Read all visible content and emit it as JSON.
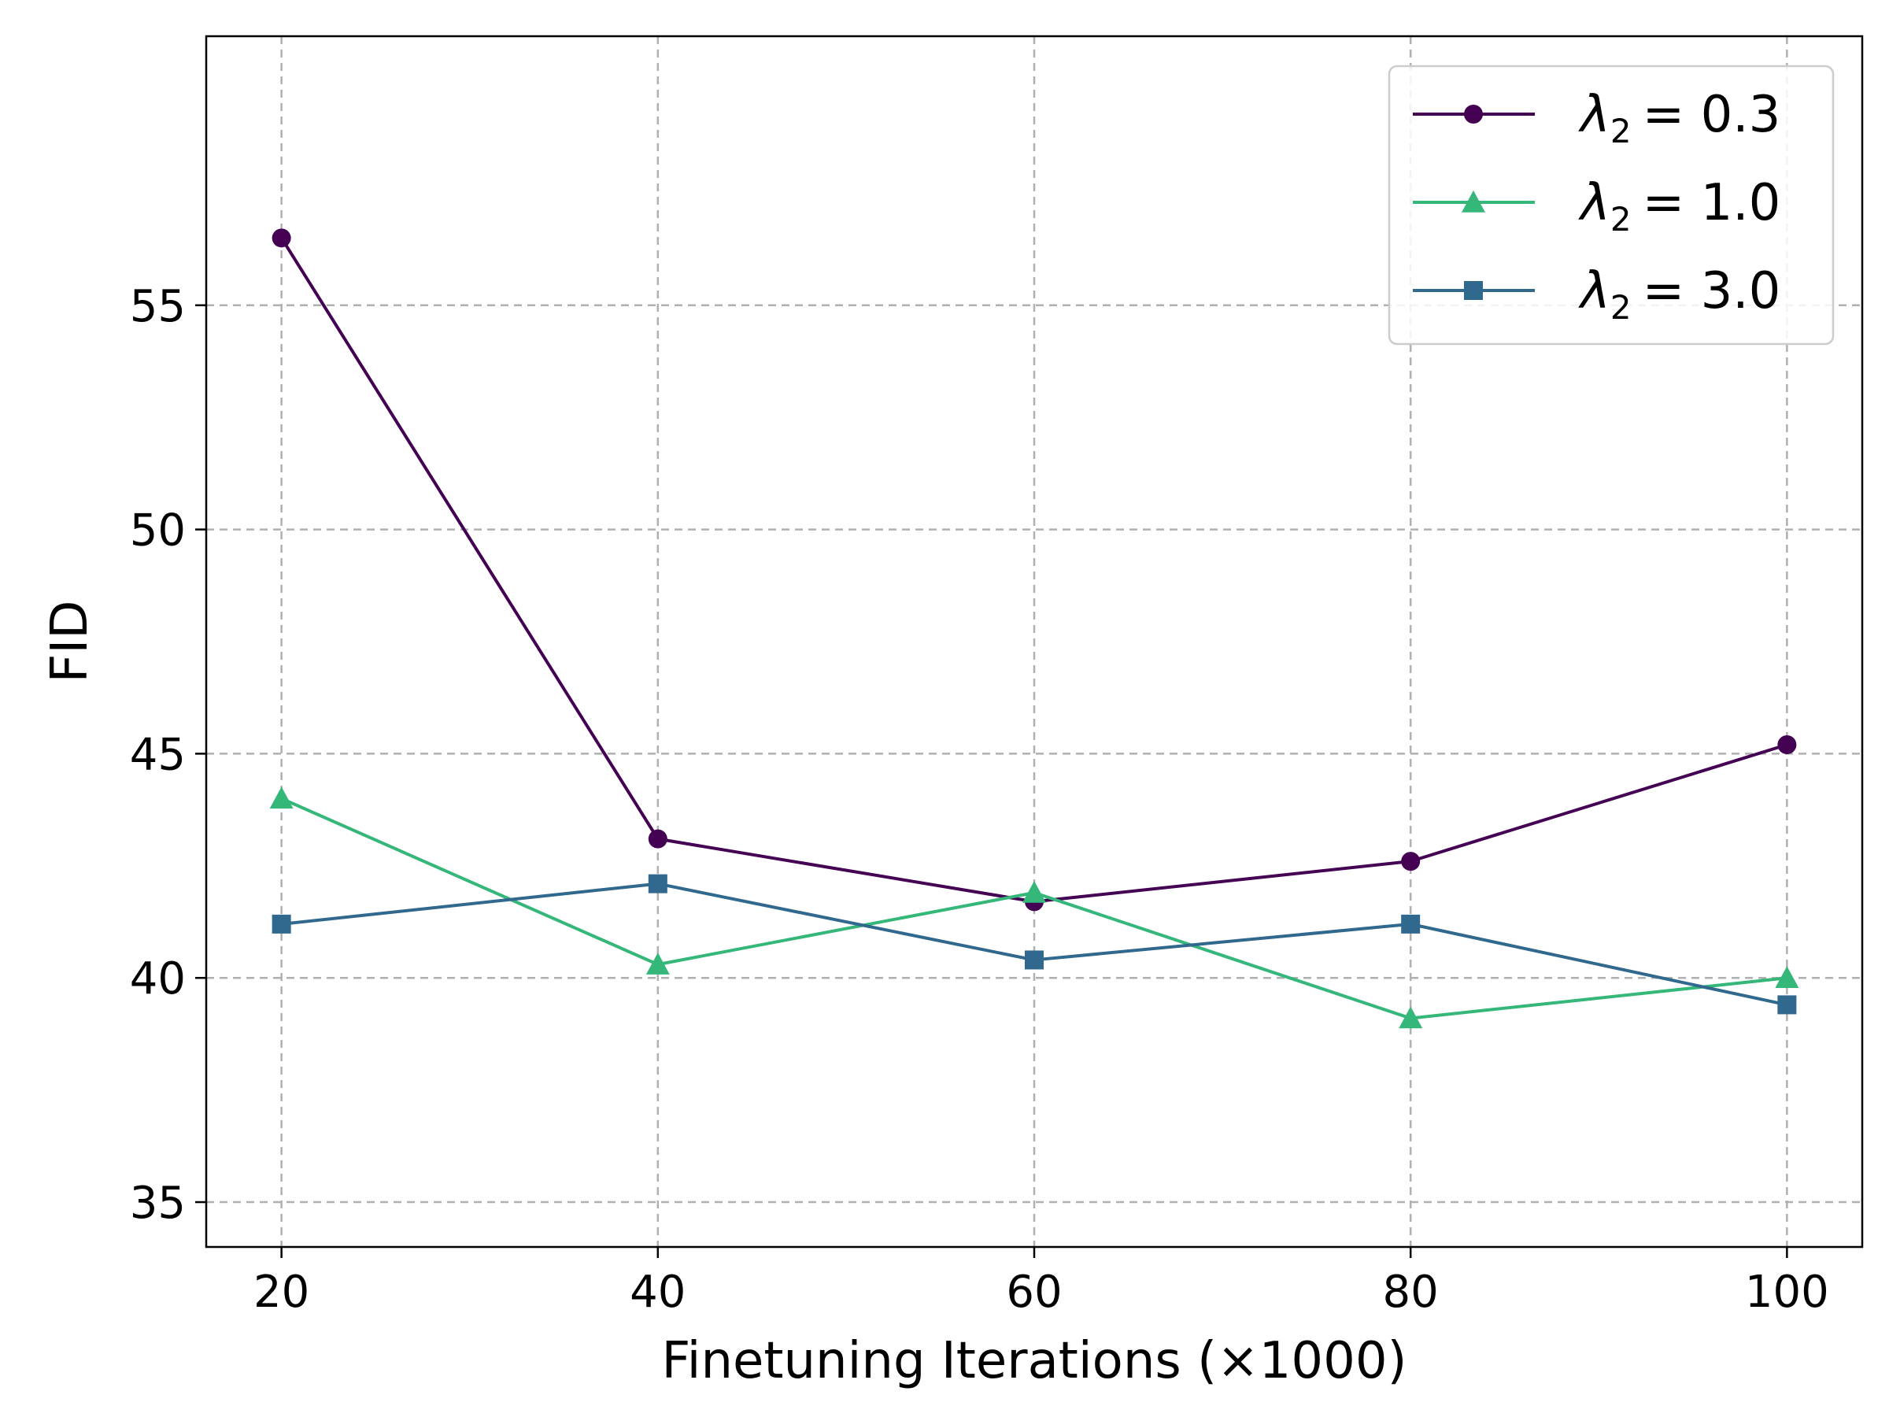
{
  "chart_data": {
    "type": "line",
    "xlabel": "Finetuning Iterations (×1000)",
    "ylabel": "FID",
    "x": [
      20,
      40,
      60,
      80,
      100
    ],
    "xticks": [
      "20",
      "40",
      "60",
      "80",
      "100"
    ],
    "yticks": [
      "35",
      "40",
      "45",
      "50",
      "55"
    ],
    "xlim": [
      16,
      104
    ],
    "ylim": [
      34,
      61
    ],
    "grid": true,
    "legend_position": "top-right",
    "series": [
      {
        "name": "λ2 = 0.3",
        "label_symbol": "λ",
        "label_sub": "2",
        "label_value": "= 0.3",
        "color": "#440154",
        "marker": "circle",
        "values": [
          56.5,
          43.1,
          41.7,
          42.6,
          45.2
        ]
      },
      {
        "name": "λ2 = 1.0",
        "label_symbol": "λ",
        "label_sub": "2",
        "label_value": "= 1.0",
        "color": "#35b779",
        "marker": "triangle",
        "values": [
          44.0,
          40.3,
          41.9,
          39.1,
          40.0
        ]
      },
      {
        "name": "λ2 = 3.0",
        "label_symbol": "λ",
        "label_sub": "2",
        "label_value": "= 3.0",
        "color": "#31688e",
        "marker": "square",
        "values": [
          41.2,
          42.1,
          40.4,
          41.2,
          39.4
        ]
      }
    ]
  }
}
